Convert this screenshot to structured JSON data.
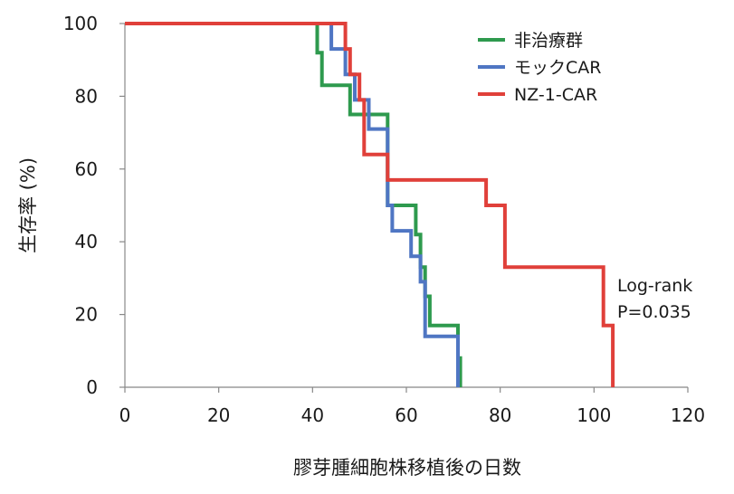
{
  "chart_data": {
    "type": "line",
    "subtype": "kaplan-meier step curves",
    "title": "",
    "xlabel": "膠芽腫細胞株移植後の日数",
    "ylabel": "生存率 (%)",
    "xlim": [
      0,
      120
    ],
    "ylim": [
      0,
      100
    ],
    "xticks": [
      "0",
      "20",
      "40",
      "60",
      "80",
      "100",
      "120"
    ],
    "yticks": [
      "0",
      "20",
      "40",
      "60",
      "80",
      "100"
    ],
    "grid": false,
    "legend_position": "top-right",
    "series": [
      {
        "name": "非治療群",
        "color": "#2e9a4e",
        "x": [
          0,
          41,
          41,
          42,
          42,
          48,
          48,
          50,
          50,
          56,
          56,
          62,
          62,
          63,
          63,
          64,
          64,
          65,
          65,
          71,
          71,
          71.5,
          71.5
        ],
        "y": [
          100,
          100,
          92,
          92,
          83,
          83,
          75,
          75,
          75,
          75,
          50,
          50,
          42,
          42,
          33,
          33,
          25,
          25,
          17,
          17,
          8,
          8,
          0
        ]
      },
      {
        "name": "モックCAR",
        "color": "#4f76c3",
        "x": [
          0,
          44,
          44,
          47,
          47,
          49,
          49,
          52,
          52,
          56,
          56,
          57,
          57,
          61,
          61,
          63,
          63,
          64,
          64,
          71,
          71
        ],
        "y": [
          100,
          100,
          93,
          93,
          86,
          86,
          79,
          79,
          71,
          71,
          50,
          50,
          43,
          43,
          36,
          36,
          29,
          29,
          14,
          14,
          0
        ]
      },
      {
        "name": "NZ-1-CAR",
        "color": "#e0403a",
        "x": [
          0,
          47,
          47,
          48,
          48,
          50,
          50,
          51,
          51,
          56,
          56,
          57,
          57,
          77,
          77,
          81,
          81,
          102,
          102,
          104,
          104
        ],
        "y": [
          100,
          100,
          93,
          93,
          86,
          86,
          79,
          79,
          64,
          64,
          57,
          57,
          57,
          57,
          50,
          50,
          33,
          33,
          17,
          17,
          0
        ]
      }
    ],
    "annotations": [
      "Log-rank",
      "P=0.035"
    ]
  }
}
